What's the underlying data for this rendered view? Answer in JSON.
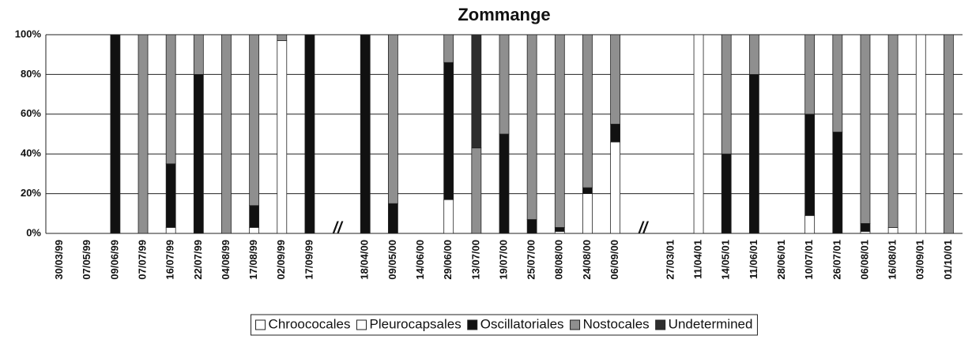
{
  "chart_data": {
    "type": "stacked_bar",
    "title": "Zommange",
    "categories": [
      "30/03/99",
      "07/05/99",
      "09/06/99",
      "07/07/99",
      "16/07/99",
      "22/07/99",
      "04/08/99",
      "17/08/99",
      "02/09/99",
      "17/09/99",
      null,
      "18/04/00",
      "09/05/00",
      "14/06/00",
      "29/06/00",
      "13/07/00",
      "19/07/00",
      "25/07/00",
      "08/08/00",
      "24/08/00",
      "06/09/00",
      null,
      "27/03/01",
      "11/04/01",
      "14/05/01",
      "11/06/01",
      "28/06/01",
      "10/07/01",
      "26/07/01",
      "06/08/01",
      "16/08/01",
      "03/09/01",
      "01/10/01"
    ],
    "annotations": [
      "//",
      "//"
    ],
    "series": [
      {
        "name": "Chroococales",
        "color": "#ffffff",
        "values": [
          0,
          0,
          0,
          0,
          3,
          0,
          0,
          3,
          97,
          0,
          null,
          0,
          0,
          0,
          17,
          0,
          0,
          0,
          1,
          20,
          46,
          null,
          0,
          100,
          0,
          0,
          0,
          9,
          0,
          1,
          3,
          100,
          0
        ]
      },
      {
        "name": "Pleurocapsales",
        "color": "#ffffff",
        "values": [
          0,
          0,
          0,
          0,
          0,
          0,
          0,
          0,
          0,
          0,
          null,
          0,
          0,
          0,
          0,
          0,
          0,
          0,
          0,
          0,
          0,
          null,
          0,
          0,
          0,
          0,
          0,
          0,
          0,
          0,
          0,
          0,
          0
        ]
      },
      {
        "name": "Oscillatoriales",
        "color": "#111111",
        "values": [
          0,
          0,
          100,
          0,
          32,
          80,
          0,
          11,
          0,
          100,
          null,
          100,
          15,
          0,
          69,
          0,
          50,
          7,
          2,
          3,
          9,
          null,
          0,
          0,
          40,
          80,
          0,
          51,
          51,
          4,
          0,
          0,
          0
        ]
      },
      {
        "name": "Nostocales",
        "color": "#8f8f8f",
        "values": [
          0,
          0,
          0,
          100,
          65,
          20,
          100,
          86,
          3,
          0,
          null,
          0,
          85,
          0,
          14,
          43,
          50,
          93,
          97,
          77,
          45,
          null,
          0,
          0,
          60,
          20,
          0,
          40,
          49,
          95,
          97,
          0,
          100
        ]
      },
      {
        "name": "Undetermined",
        "color": "#2e2e2e",
        "values": [
          0,
          0,
          0,
          0,
          0,
          0,
          0,
          0,
          0,
          0,
          null,
          0,
          0,
          0,
          0,
          57,
          0,
          0,
          0,
          0,
          0,
          null,
          0,
          0,
          0,
          0,
          0,
          0,
          0,
          0,
          0,
          0,
          0
        ]
      }
    ],
    "ylim": [
      0,
      100
    ],
    "yticks": [
      {
        "value": 0,
        "label": "0%"
      },
      {
        "value": 20,
        "label": "20%"
      },
      {
        "value": 40,
        "label": "40%"
      },
      {
        "value": 60,
        "label": "60%"
      },
      {
        "value": 80,
        "label": "80%"
      },
      {
        "value": 100,
        "label": "100%"
      }
    ],
    "grid": true,
    "legend": "bottom"
  }
}
